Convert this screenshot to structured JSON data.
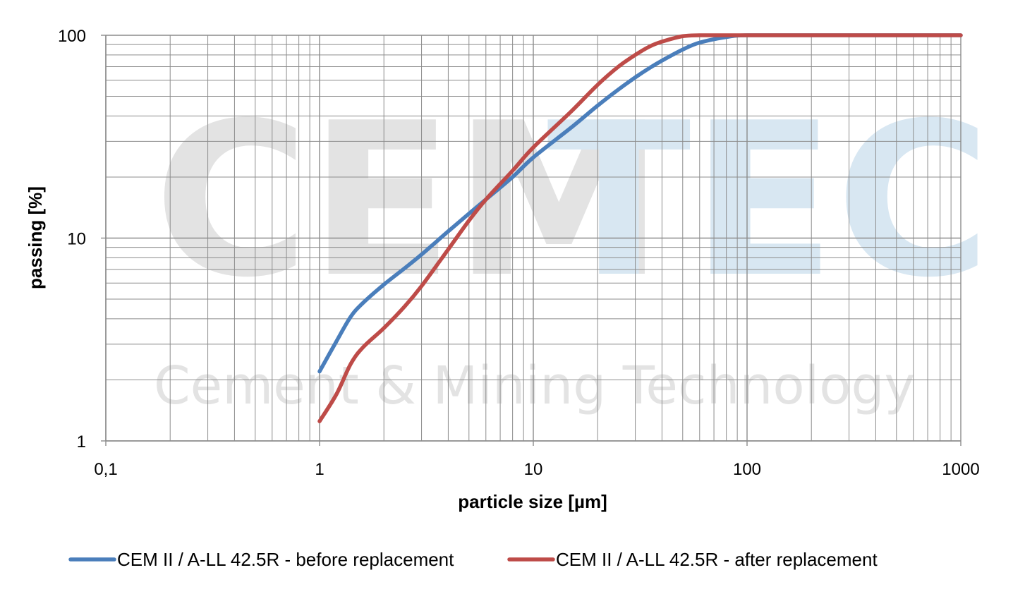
{
  "watermark": {
    "line1_part1": "CEM",
    "line1_part2": "TEC",
    "line2": "Cement & Mining Technology",
    "colors": {
      "gray": "#e3e3e3",
      "blue": "#d8e7f2"
    }
  },
  "chart_data": {
    "type": "line",
    "xscale": "log",
    "yscale": "log",
    "xlim": [
      0.1,
      1000
    ],
    "ylim": [
      1,
      100
    ],
    "xlabel": "particle size [µm]",
    "ylabel": "passing [%]",
    "xticks": [
      {
        "value": 0.1,
        "label": "0,1"
      },
      {
        "value": 1,
        "label": "1"
      },
      {
        "value": 10,
        "label": "10"
      },
      {
        "value": 100,
        "label": "100"
      },
      {
        "value": 1000,
        "label": "1000"
      }
    ],
    "yticks": [
      {
        "value": 1,
        "label": "1"
      },
      {
        "value": 10,
        "label": "10"
      },
      {
        "value": 100,
        "label": "100"
      }
    ],
    "grid": true,
    "legend_position": "bottom",
    "series": [
      {
        "name": "CEM II / A-LL 42.5R - before replacement",
        "color": "#4a7ebb",
        "x": [
          1,
          1.2,
          1.4,
          1.6,
          2,
          2.5,
          3,
          4,
          5,
          6,
          8,
          10,
          15,
          20,
          25,
          30,
          35,
          40,
          50,
          60,
          80,
          100,
          200,
          500,
          1000
        ],
        "y": [
          2.2,
          3.1,
          4.1,
          4.8,
          5.9,
          7.1,
          8.3,
          10.8,
          13.2,
          15.5,
          20.0,
          25.0,
          35.0,
          45.0,
          54.0,
          62.0,
          69.0,
          75.0,
          85.0,
          92.0,
          98.0,
          100,
          100,
          100,
          100
        ]
      },
      {
        "name": "CEM II / A-LL 42.5R - after replacement",
        "color": "#be4b48",
        "x": [
          1,
          1.2,
          1.4,
          1.6,
          2,
          2.5,
          3,
          4,
          5,
          6,
          8,
          10,
          15,
          20,
          25,
          30,
          35,
          40,
          50,
          60,
          80,
          100,
          200,
          500,
          1000
        ],
        "y": [
          1.25,
          1.7,
          2.4,
          2.9,
          3.6,
          4.6,
          5.8,
          8.8,
          12.2,
          15.5,
          21.5,
          28.0,
          42.0,
          57.0,
          70.0,
          80.0,
          88.0,
          93.0,
          99.0,
          100,
          100,
          100,
          100,
          100,
          100
        ]
      }
    ]
  }
}
